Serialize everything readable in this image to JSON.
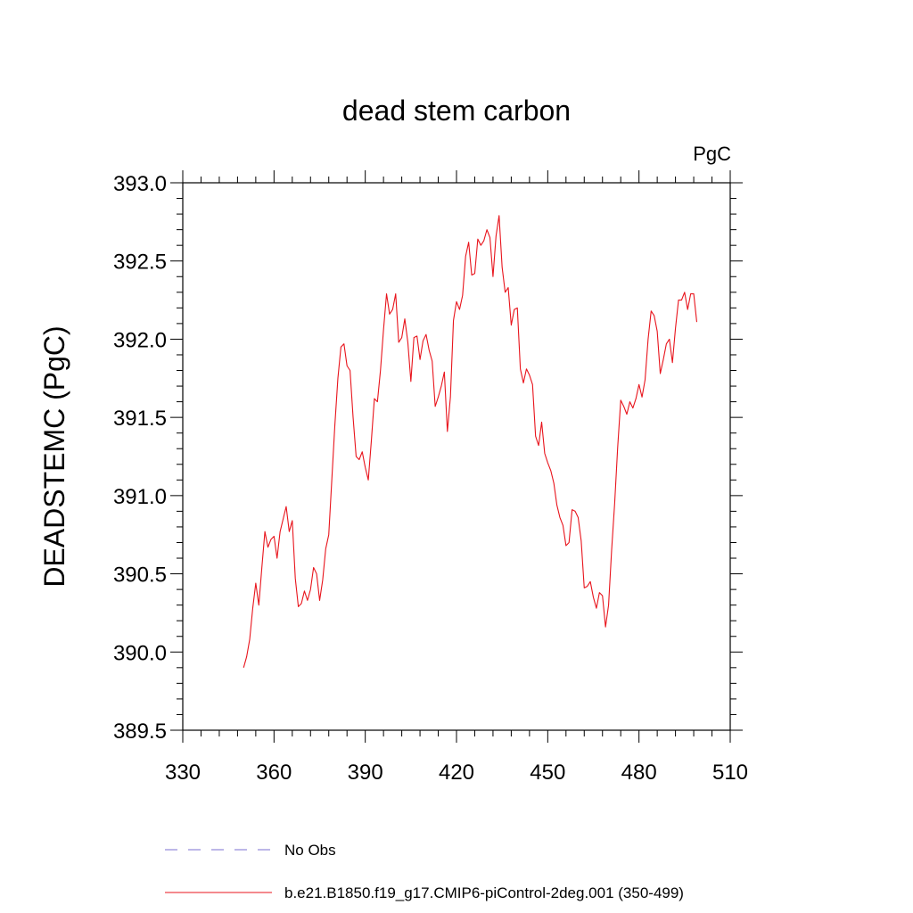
{
  "chart_data": {
    "type": "line",
    "title": "dead stem carbon",
    "units": "PgC",
    "ylabel": "DEADSTEMC  (PgC)",
    "xlabel": "",
    "xlim": [
      330,
      510
    ],
    "ylim": [
      389.5,
      393.0
    ],
    "x_ticks": [
      "330",
      "360",
      "390",
      "420",
      "450",
      "480",
      "510"
    ],
    "y_ticks": [
      "389.5",
      "390.0",
      "390.5",
      "391.0",
      "391.5",
      "392.0",
      "392.5",
      "393.0"
    ],
    "grid": false,
    "legend": {
      "placement": "bottom",
      "entries": [
        {
          "label": "No Obs",
          "style": "dashed",
          "color": "#7b6fd0"
        },
        {
          "label": "b.e21.B1850.f19_g17.CMIP6-piControl-2deg.001 (350-499)",
          "style": "solid",
          "color": "#e8141c"
        }
      ]
    },
    "series": [
      {
        "name": "b.e21.B1850.f19_g17.CMIP6-piControl-2deg.001 (350-499)",
        "color": "#e8141c",
        "x_start": 350,
        "x_step": 1,
        "values": [
          389.9,
          389.97,
          390.08,
          390.28,
          390.44,
          390.3,
          390.54,
          390.77,
          390.67,
          390.72,
          390.74,
          390.6,
          390.77,
          390.85,
          390.93,
          390.77,
          390.84,
          390.47,
          390.29,
          390.31,
          390.39,
          390.33,
          390.4,
          390.54,
          390.5,
          390.33,
          390.46,
          390.66,
          390.75,
          391.1,
          391.45,
          391.75,
          391.95,
          391.97,
          391.83,
          391.8,
          391.5,
          391.25,
          391.23,
          391.28,
          391.18,
          391.1,
          391.35,
          391.62,
          391.6,
          391.8,
          392.06,
          392.29,
          392.16,
          392.19,
          392.29,
          391.98,
          392.01,
          392.13,
          391.98,
          391.73,
          392.01,
          392.02,
          391.87,
          391.99,
          392.03,
          391.93,
          391.86,
          391.57,
          391.63,
          391.7,
          391.79,
          391.41,
          391.63,
          392.12,
          392.24,
          392.19,
          392.28,
          392.53,
          392.62,
          392.41,
          392.42,
          392.64,
          392.6,
          392.63,
          392.7,
          392.65,
          392.4,
          392.66,
          392.79,
          392.46,
          392.3,
          392.33,
          392.09,
          392.19,
          392.2,
          391.81,
          391.72,
          391.81,
          391.77,
          391.71,
          391.38,
          391.32,
          391.47,
          391.27,
          391.21,
          391.16,
          391.08,
          390.94,
          390.86,
          390.81,
          390.68,
          390.7,
          390.91,
          390.9,
          390.86,
          390.71,
          390.41,
          390.42,
          390.45,
          390.35,
          390.28,
          390.38,
          390.36,
          390.16,
          390.3,
          390.65,
          390.95,
          391.31,
          391.61,
          391.57,
          391.52,
          391.6,
          391.56,
          391.62,
          391.71,
          391.63,
          391.74,
          392.0,
          392.18,
          392.15,
          392.05,
          391.78,
          391.87,
          391.97,
          392.0,
          391.85,
          392.07,
          392.25,
          392.25,
          392.3,
          392.19,
          392.29,
          392.29,
          392.11
        ]
      }
    ]
  }
}
